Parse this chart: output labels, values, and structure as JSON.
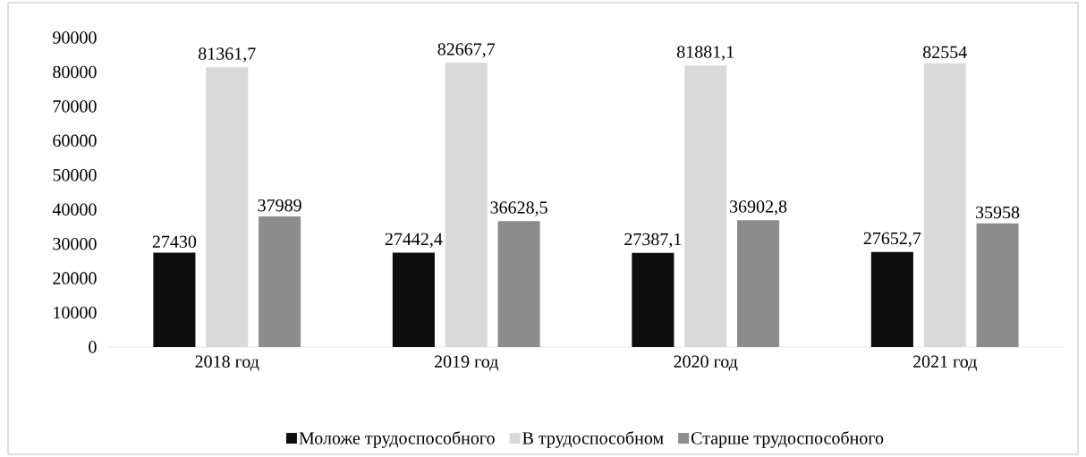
{
  "chart_data": {
    "type": "bar",
    "categories": [
      "2018 год",
      "2019 год",
      "2020 год",
      "2021 год"
    ],
    "series": [
      {
        "name": "Моложе трудоспособного",
        "color": "#0d0d0d",
        "values": [
          27430,
          27442.4,
          27387.1,
          27652.7
        ],
        "value_labels": [
          "27430",
          "27442,4",
          "27387,1",
          "27652,7"
        ]
      },
      {
        "name": "В трудоспособном",
        "color": "#d9d9d9",
        "values": [
          81361.7,
          82667.7,
          81881.1,
          82554
        ],
        "value_labels": [
          "81361,7",
          "82667,7",
          "81881,1",
          "82554"
        ]
      },
      {
        "name": "Старше трудоспособного",
        "color": "#8c8c8c",
        "values": [
          37989,
          36628.5,
          36902.8,
          35958
        ],
        "value_labels": [
          "37989",
          "36628,5",
          "36902,8",
          "35958"
        ]
      }
    ],
    "ylim": [
      0,
      90000
    ],
    "yticks": [
      0,
      10000,
      20000,
      30000,
      40000,
      50000,
      60000,
      70000,
      80000,
      90000
    ],
    "grid": false,
    "legend": "bottom"
  }
}
